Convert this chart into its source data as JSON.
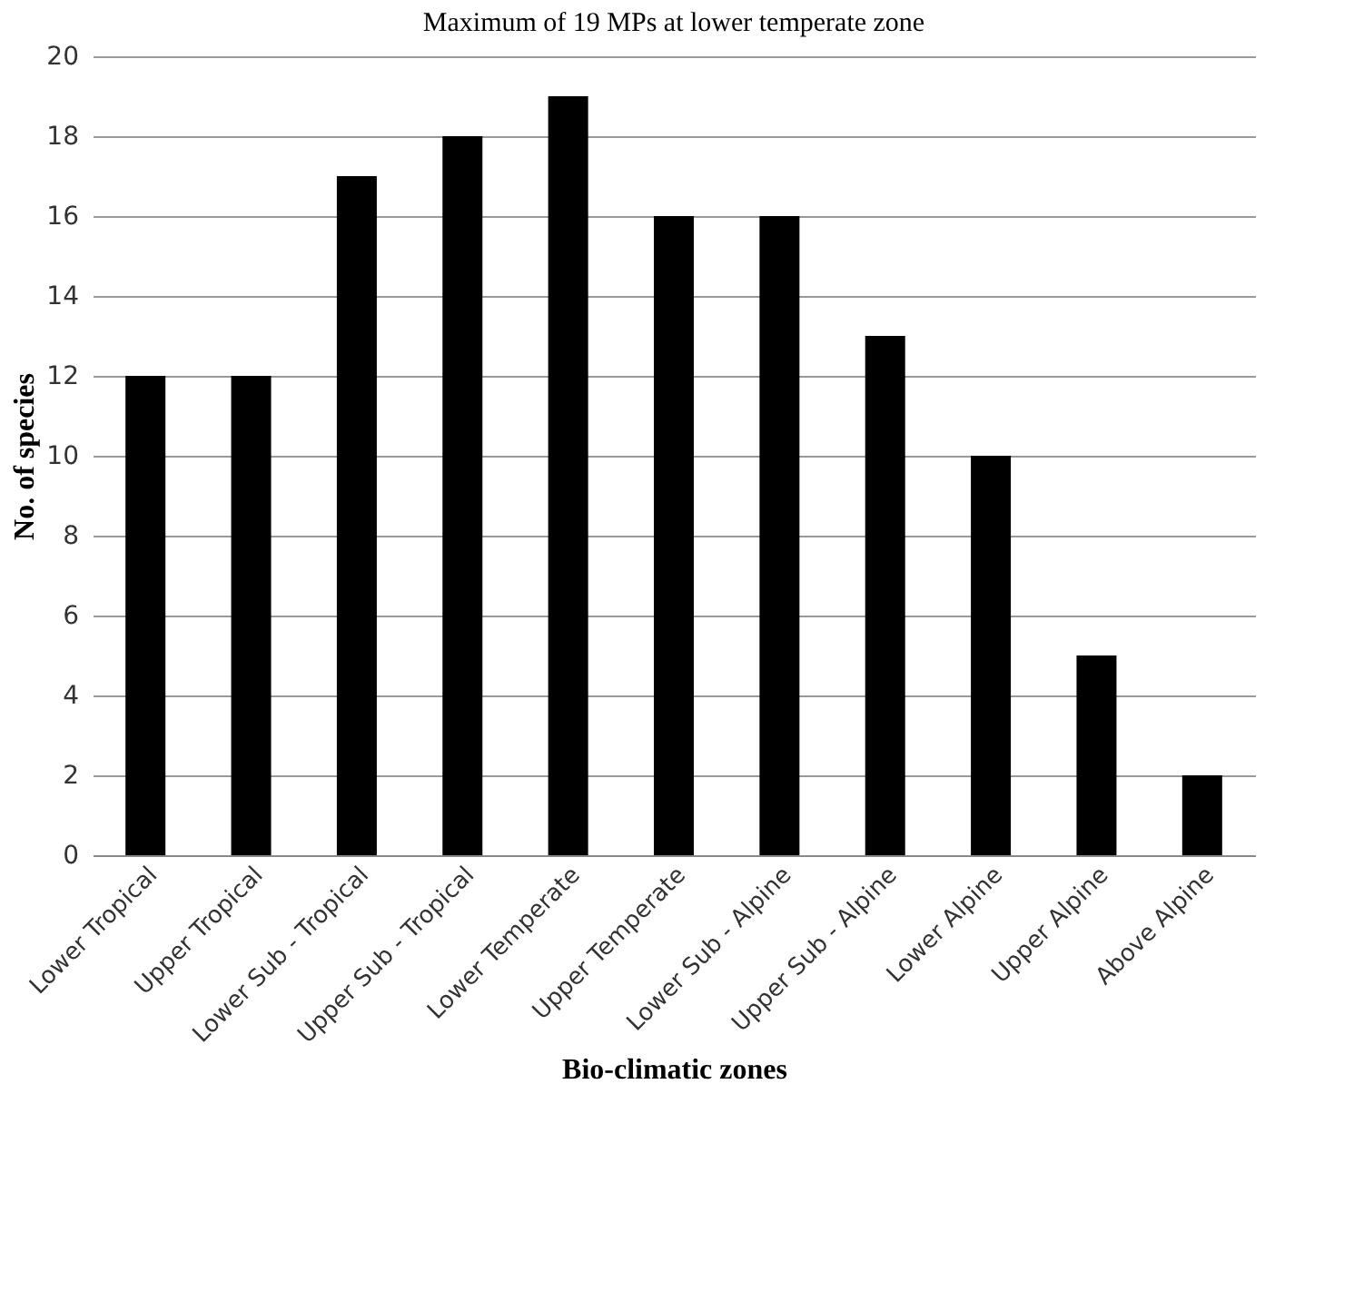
{
  "chart_data": {
    "type": "bar",
    "title": "Maximum of 19 MPs at lower temperate zone",
    "xlabel": "Bio-climatic zones",
    "ylabel": "No. of species",
    "categories": [
      "Lower Tropical",
      "Upper Tropical",
      "Lower Sub - Tropical",
      "Upper Sub - Tropical",
      "Lower Temperate",
      "Upper Temperate",
      "Lower Sub - Alpine",
      "Upper Sub - Alpine",
      "Lower Alpine",
      "Upper Alpine",
      "Above Alpine"
    ],
    "values": [
      12,
      12,
      17,
      18,
      19,
      16,
      16,
      13,
      10,
      5,
      2
    ],
    "color": "#000000",
    "ylim": [
      0,
      20
    ],
    "yticks": [
      0,
      2,
      4,
      6,
      8,
      10,
      12,
      14,
      16,
      18,
      20
    ],
    "grid": "y"
  }
}
